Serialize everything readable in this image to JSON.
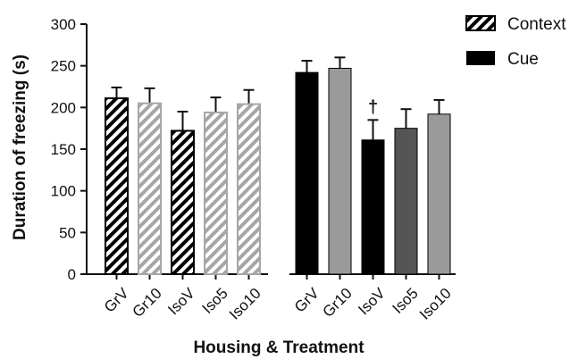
{
  "chart_data": {
    "type": "bar",
    "ylabel": "Duration of freezing (s)",
    "xlabel": "Housing & Treatment",
    "ylim": [
      0,
      300
    ],
    "yticks": [
      0,
      50,
      100,
      150,
      200,
      250,
      300
    ],
    "legend": {
      "placement": "top-right",
      "entries": [
        {
          "name": "Context",
          "style": "hatched"
        },
        {
          "name": "Cue",
          "style": "solid-black"
        }
      ]
    },
    "groups": [
      {
        "name": "Context",
        "bars": [
          {
            "category": "GrV",
            "value": 211,
            "error": 13,
            "fill": "hatch-black"
          },
          {
            "category": "Gr10",
            "value": 205,
            "error": 18,
            "fill": "hatch-gray"
          },
          {
            "category": "IsoV",
            "value": 172,
            "error": 23,
            "fill": "hatch-black"
          },
          {
            "category": "Iso5",
            "value": 194,
            "error": 18,
            "fill": "hatch-gray"
          },
          {
            "category": "Iso10",
            "value": 204,
            "error": 17,
            "fill": "hatch-gray"
          }
        ]
      },
      {
        "name": "Cue",
        "bars": [
          {
            "category": "GrV",
            "value": 242,
            "error": 14,
            "fill": "#000000"
          },
          {
            "category": "Gr10",
            "value": 247,
            "error": 13,
            "fill": "#9a9a9a"
          },
          {
            "category": "IsoV",
            "value": 161,
            "error": 24,
            "fill": "#000000",
            "annotation": "†"
          },
          {
            "category": "Iso5",
            "value": 175,
            "error": 23,
            "fill": "#555555"
          },
          {
            "category": "Iso10",
            "value": 192,
            "error": 17,
            "fill": "#9a9a9a"
          }
        ]
      }
    ],
    "colors": {
      "hatch_dark": "#000000",
      "hatch_light": "#a6a6a6",
      "axis": "#111111"
    }
  }
}
